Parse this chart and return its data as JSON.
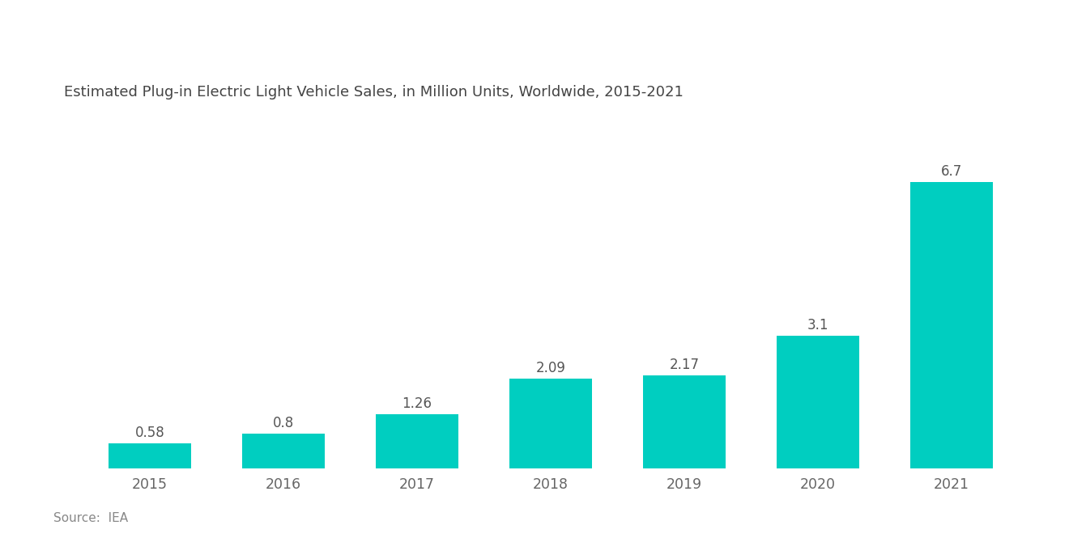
{
  "title": "Estimated Plug-in Electric Light Vehicle Sales, in Million Units, Worldwide, 2015-2021",
  "categories": [
    "2015",
    "2016",
    "2017",
    "2018",
    "2019",
    "2020",
    "2021"
  ],
  "values": [
    0.58,
    0.8,
    1.26,
    2.09,
    2.17,
    3.1,
    6.7
  ],
  "bar_color": "#00CEC0",
  "background_color": "#ffffff",
  "title_fontsize": 13,
  "label_fontsize": 12,
  "tick_fontsize": 12.5,
  "source_text": "Source:  IEA",
  "source_fontsize": 11,
  "ylim": [
    0,
    8.2
  ],
  "bar_width": 0.62
}
